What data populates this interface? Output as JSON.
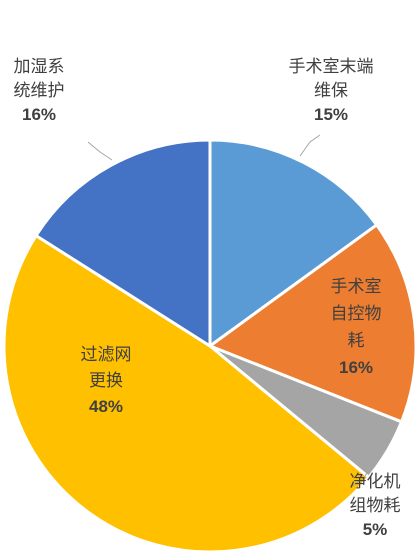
{
  "chart_data": {
    "type": "pie",
    "title": "",
    "start_angle_deg": 0,
    "direction": "clockwise",
    "legend": "none",
    "slices": [
      {
        "label_lines": [
          "手术室末端",
          "维保"
        ],
        "value": 15,
        "pct_label": "15%",
        "color": "#5b9bd5",
        "label_mode": "outside",
        "label_color": "#404040"
      },
      {
        "label_lines": [
          "手术室",
          "自控物",
          "耗"
        ],
        "value": 16,
        "pct_label": "16%",
        "color": "#ed7d31",
        "label_mode": "inside",
        "label_color": "#404040"
      },
      {
        "label_lines": [
          "净化机",
          "组物耗"
        ],
        "value": 5,
        "pct_label": "5%",
        "color": "#a5a5a5",
        "label_mode": "outside",
        "label_color": "#404040"
      },
      {
        "label_lines": [
          "过滤网",
          "更换"
        ],
        "value": 48,
        "pct_label": "48%",
        "color": "#ffc000",
        "label_mode": "inside",
        "label_color": "#404040"
      },
      {
        "label_lines": [
          "加湿系",
          "统维护"
        ],
        "value": 16,
        "pct_label": "16%",
        "color": "#4472c4",
        "label_mode": "outside",
        "label_color": "#404040"
      }
    ]
  }
}
